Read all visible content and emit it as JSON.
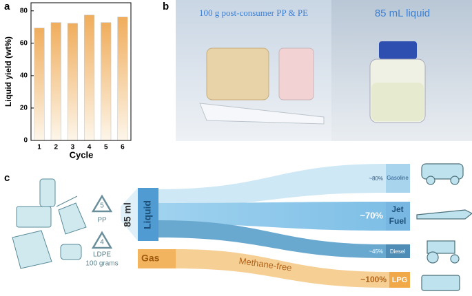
{
  "chart_data": {
    "type": "bar",
    "panel_label": "a",
    "x_label": "Cycle",
    "y_label": "Liquid yield (wt%)",
    "categories": [
      "1",
      "2",
      "3",
      "4",
      "5",
      "6"
    ],
    "values": [
      69.4,
      72.8,
      72.3,
      77.4,
      72.8,
      76.2
    ],
    "color": "#f0ad5c",
    "ylim": [
      0,
      85
    ],
    "yticks": [
      0,
      20,
      40,
      60,
      80
    ]
  },
  "panel_b": {
    "label": "b",
    "left_caption": "100 g post-consumer PP & PE",
    "right_caption": "85 mL liquid"
  },
  "panel_c": {
    "label": "c",
    "inputs": [
      {
        "code": "5",
        "name": "PP"
      },
      {
        "code": "4",
        "name": "LDPE"
      }
    ],
    "feed": "100 grams",
    "volume": "85 ml",
    "liquid": "Liquid",
    "gas": "Gas",
    "gas_note": "Methane-free",
    "products": [
      {
        "share": "~80%",
        "name": "Gasoline"
      },
      {
        "share": "~70%",
        "name_lines": [
          "Jet",
          "Fuel"
        ]
      },
      {
        "share": "~45%",
        "name": "Diesel"
      },
      {
        "share": "~100%",
        "name": "LPG"
      }
    ]
  }
}
